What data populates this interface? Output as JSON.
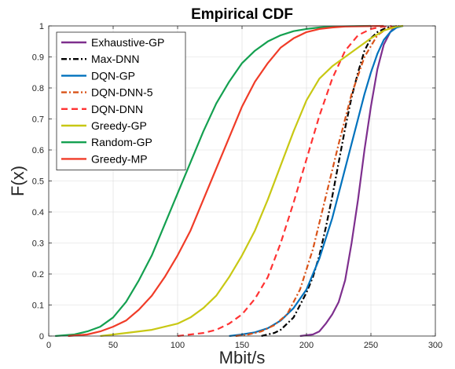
{
  "chart_data": {
    "type": "line",
    "title": "Empirical CDF",
    "xlabel": "Mbit/s",
    "ylabel": "F(x)",
    "xlim": [
      0,
      300
    ],
    "ylim": [
      0,
      1
    ],
    "xticks": [
      0,
      50,
      100,
      150,
      200,
      250,
      300
    ],
    "yticks": [
      0,
      0.1,
      0.2,
      0.3,
      0.4,
      0.5,
      0.6,
      0.7,
      0.8,
      0.9,
      1
    ],
    "grid": true,
    "legend_position": "top-left",
    "series": [
      {
        "name": "Exhaustive-GP",
        "color": "#7E2F8E",
        "dash": "solid",
        "x": [
          195,
          205,
          210,
          215,
          220,
          225,
          230,
          235,
          240,
          245,
          250,
          255,
          260,
          265,
          268,
          272
        ],
        "y": [
          0,
          0.005,
          0.015,
          0.04,
          0.07,
          0.11,
          0.18,
          0.3,
          0.44,
          0.6,
          0.74,
          0.86,
          0.94,
          0.98,
          0.995,
          1
        ]
      },
      {
        "name": "Max-DNN",
        "color": "#000000",
        "dash": "dashdot",
        "x": [
          165,
          175,
          180,
          185,
          190,
          195,
          200,
          205,
          210,
          215,
          220,
          225,
          230,
          235,
          240,
          245,
          250,
          255,
          260,
          265,
          272
        ],
        "y": [
          0,
          0.01,
          0.02,
          0.04,
          0.06,
          0.1,
          0.14,
          0.19,
          0.26,
          0.35,
          0.45,
          0.56,
          0.67,
          0.77,
          0.85,
          0.92,
          0.96,
          0.98,
          0.99,
          0.997,
          1
        ]
      },
      {
        "name": "DQN-GP",
        "color": "#0072BD",
        "dash": "solid",
        "x": [
          140,
          150,
          160,
          170,
          180,
          190,
          200,
          210,
          220,
          230,
          240,
          245,
          250,
          255,
          260,
          265,
          270,
          275
        ],
        "y": [
          0,
          0.005,
          0.012,
          0.025,
          0.05,
          0.09,
          0.15,
          0.25,
          0.38,
          0.54,
          0.7,
          0.78,
          0.85,
          0.91,
          0.955,
          0.98,
          0.995,
          1
        ]
      },
      {
        "name": "DQN-DNN-5",
        "color": "#D95319",
        "dash": "dashdot",
        "x": [
          145,
          155,
          165,
          175,
          185,
          195,
          205,
          215,
          225,
          235,
          245,
          255,
          262,
          270
        ],
        "y": [
          0,
          0.005,
          0.015,
          0.035,
          0.07,
          0.15,
          0.28,
          0.45,
          0.62,
          0.78,
          0.9,
          0.97,
          0.99,
          1
        ]
      },
      {
        "name": "DQN-DNN",
        "color": "#FF3333",
        "dash": "dashed",
        "x": [
          100,
          120,
          130,
          140,
          150,
          160,
          170,
          180,
          190,
          200,
          210,
          220,
          230,
          240,
          250,
          258,
          266
        ],
        "y": [
          0,
          0.01,
          0.02,
          0.04,
          0.07,
          0.12,
          0.19,
          0.3,
          0.43,
          0.57,
          0.71,
          0.83,
          0.92,
          0.97,
          0.99,
          0.997,
          1
        ]
      },
      {
        "name": "Greedy-GP",
        "color": "#C8C814",
        "dash": "solid",
        "x": [
          40,
          60,
          80,
          100,
          110,
          120,
          130,
          140,
          150,
          160,
          170,
          180,
          190,
          200,
          210,
          220,
          230,
          240,
          250,
          260,
          270,
          275
        ],
        "y": [
          0,
          0.01,
          0.02,
          0.04,
          0.06,
          0.09,
          0.13,
          0.19,
          0.26,
          0.34,
          0.44,
          0.55,
          0.66,
          0.76,
          0.83,
          0.87,
          0.9,
          0.93,
          0.96,
          0.985,
          0.998,
          1
        ]
      },
      {
        "name": "Random-GP",
        "color": "#14A050",
        "dash": "solid",
        "x": [
          5,
          20,
          30,
          40,
          50,
          60,
          70,
          80,
          90,
          100,
          110,
          120,
          130,
          140,
          150,
          160,
          170,
          180,
          190,
          200,
          210,
          220,
          235,
          250
        ],
        "y": [
          0,
          0.005,
          0.015,
          0.03,
          0.06,
          0.11,
          0.18,
          0.26,
          0.36,
          0.46,
          0.56,
          0.66,
          0.75,
          0.82,
          0.88,
          0.92,
          0.95,
          0.97,
          0.983,
          0.99,
          0.995,
          0.998,
          0.999,
          1
        ]
      },
      {
        "name": "Greedy-MP",
        "color": "#F03C28",
        "dash": "solid",
        "x": [
          15,
          30,
          40,
          50,
          60,
          70,
          80,
          90,
          100,
          110,
          120,
          130,
          140,
          150,
          160,
          170,
          180,
          190,
          200,
          210,
          220,
          230,
          245,
          260
        ],
        "y": [
          0,
          0.005,
          0.015,
          0.03,
          0.05,
          0.085,
          0.13,
          0.19,
          0.26,
          0.34,
          0.44,
          0.54,
          0.64,
          0.74,
          0.82,
          0.88,
          0.93,
          0.96,
          0.98,
          0.99,
          0.995,
          0.998,
          0.999,
          1
        ]
      }
    ]
  }
}
